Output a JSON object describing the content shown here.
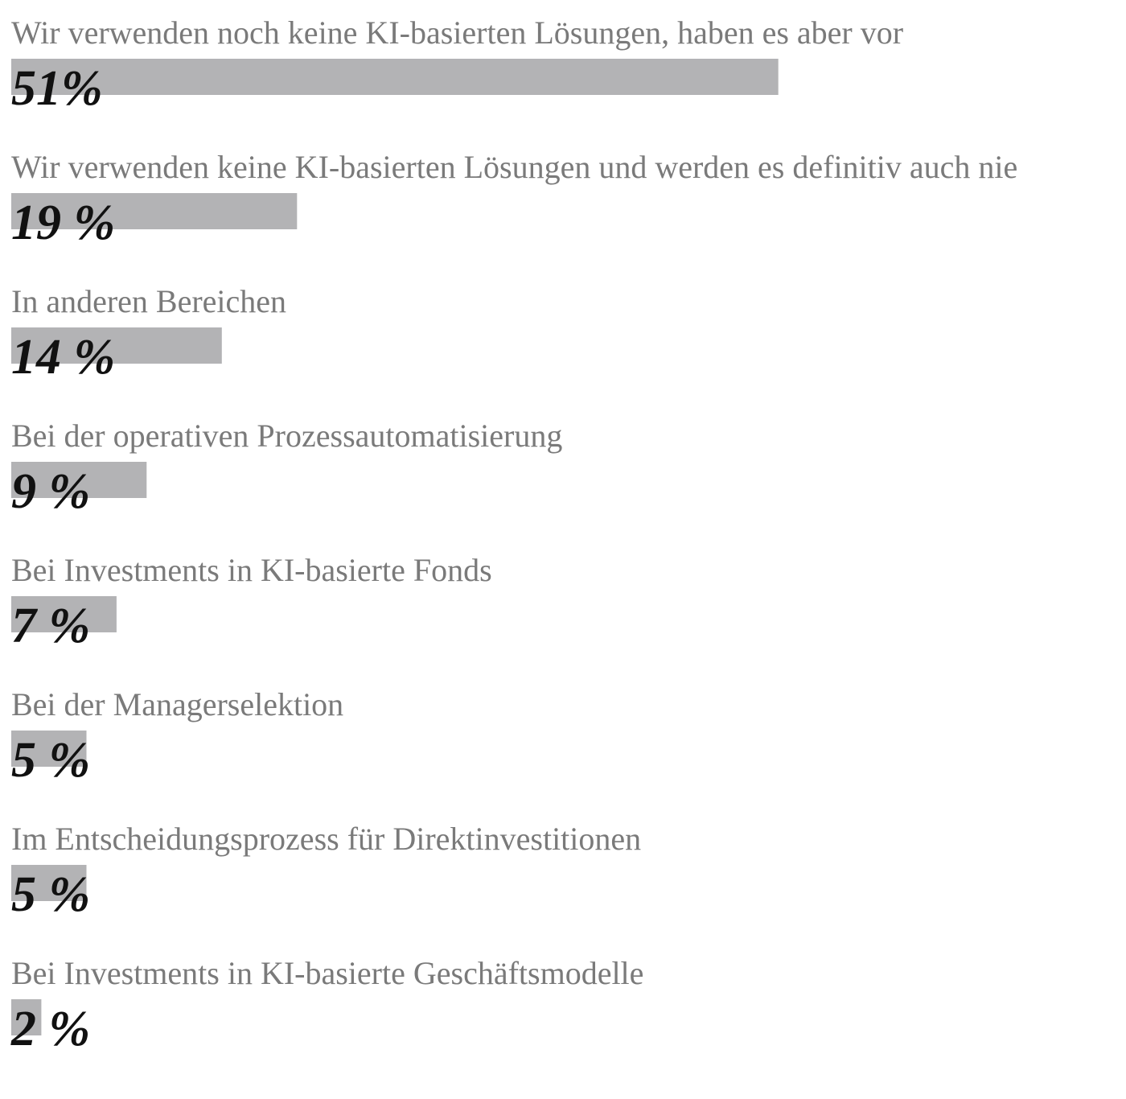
{
  "chart_data": {
    "type": "bar",
    "categories": [
      "Wir verwenden noch keine KI-basierten Lösungen, haben es aber vor",
      "Wir verwenden keine KI-basierten Lösungen und werden es definitiv auch nie",
      "In anderen Bereichen",
      "Bei der operativen Prozessautomatisierung",
      "Bei Investments in KI-basierte Fonds",
      "Bei der Managerselektion",
      "Im Entscheidungsprozess für Direktinvestitionen",
      "Bei Investments in KI-basierte Geschäftsmodelle"
    ],
    "values": [
      51,
      19,
      14,
      9,
      7,
      5,
      5,
      2
    ],
    "value_labels": [
      "51%",
      "19 %",
      "14 %",
      "9 %",
      "7 %",
      "5 %",
      "5 %",
      "2 %"
    ],
    "color": "#b3b3b5"
  }
}
